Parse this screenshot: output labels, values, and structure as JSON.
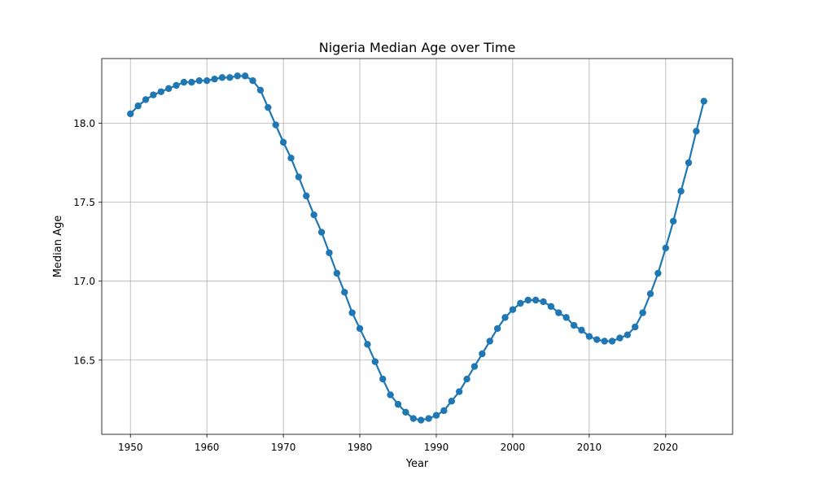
{
  "chart_data": {
    "type": "line",
    "title": "Nigeria Median Age over Time",
    "xlabel": "Year",
    "ylabel": "Median Age",
    "xlim": [
      1946.25,
      2028.75
    ],
    "ylim": [
      16.03,
      18.41
    ],
    "xticks": [
      1950,
      1960,
      1970,
      1980,
      1990,
      2000,
      2010,
      2020
    ],
    "xtick_labels": [
      "1950",
      "1960",
      "1970",
      "1980",
      "1990",
      "2000",
      "2010",
      "2020"
    ],
    "yticks": [
      16.5,
      17.0,
      17.5,
      18.0
    ],
    "ytick_labels": [
      "16.5",
      "17.0",
      "17.5",
      "18.0"
    ],
    "grid": true,
    "marker": "circle",
    "color": "#1f77b4",
    "x": [
      1950,
      1951,
      1952,
      1953,
      1954,
      1955,
      1956,
      1957,
      1958,
      1959,
      1960,
      1961,
      1962,
      1963,
      1964,
      1965,
      1966,
      1967,
      1968,
      1969,
      1970,
      1971,
      1972,
      1973,
      1974,
      1975,
      1976,
      1977,
      1978,
      1979,
      1980,
      1981,
      1982,
      1983,
      1984,
      1985,
      1986,
      1987,
      1988,
      1989,
      1990,
      1991,
      1992,
      1993,
      1994,
      1995,
      1996,
      1997,
      1998,
      1999,
      2000,
      2001,
      2002,
      2003,
      2004,
      2005,
      2006,
      2007,
      2008,
      2009,
      2010,
      2011,
      2012,
      2013,
      2014,
      2015,
      2016,
      2017,
      2018,
      2019,
      2020,
      2021,
      2022,
      2023,
      2024,
      2025
    ],
    "y": [
      18.06,
      18.11,
      18.15,
      18.18,
      18.2,
      18.22,
      18.24,
      18.26,
      18.26,
      18.27,
      18.27,
      18.28,
      18.29,
      18.29,
      18.3,
      18.3,
      18.27,
      18.21,
      18.1,
      17.99,
      17.88,
      17.78,
      17.66,
      17.54,
      17.42,
      17.31,
      17.18,
      17.05,
      16.93,
      16.8,
      16.7,
      16.6,
      16.49,
      16.38,
      16.28,
      16.22,
      16.17,
      16.13,
      16.12,
      16.13,
      16.15,
      16.18,
      16.24,
      16.3,
      16.38,
      16.46,
      16.54,
      16.62,
      16.7,
      16.77,
      16.82,
      16.86,
      16.88,
      16.88,
      16.87,
      16.84,
      16.8,
      16.77,
      16.72,
      16.69,
      16.65,
      16.63,
      16.62,
      16.62,
      16.64,
      16.66,
      16.71,
      16.8,
      16.92,
      17.05,
      17.21,
      17.38,
      17.57,
      17.75,
      17.95,
      18.14
    ]
  }
}
